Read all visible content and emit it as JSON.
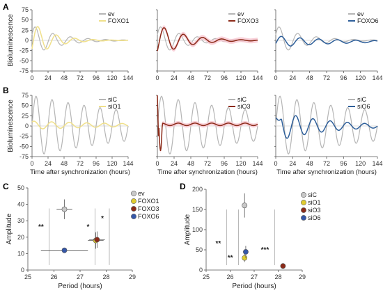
{
  "panel_labels": {
    "A": "A",
    "B": "B",
    "C": "C",
    "D": "D"
  },
  "colors": {
    "control": "#b5b5b5",
    "foxo1": "#f0e08a",
    "foxo3": "#8b2a18",
    "foxo6": "#2e5f9a",
    "error_band": "#f7c6d0",
    "sic_marker": "#c8c8c8",
    "sio1_marker": "#e0cc2e",
    "sio3_marker": "#8b2a18",
    "sio6_marker": "#3557a8"
  },
  "chart_data": [
    {
      "type": "line",
      "id": "A1",
      "ylabel": "Bioluminescence",
      "xlabel": "",
      "xlim": [
        0,
        144
      ],
      "ylim": [
        -75,
        75
      ],
      "xticks": [
        0,
        24,
        48,
        72,
        96,
        120,
        144
      ],
      "yticks": [
        75,
        50,
        25,
        0,
        -25,
        -50,
        -75
      ],
      "legend": "top-right",
      "series": [
        {
          "name": "ev",
          "color": "#b5b5b5",
          "amplitude": 37,
          "period": 26.4,
          "damping": 40,
          "phase": -5,
          "offset": 0
        },
        {
          "name": "FOXO1",
          "color": "#f0e08a",
          "amplitude": 45,
          "period": 27.6,
          "damping": 30,
          "phase": -9,
          "offset": 0
        }
      ]
    },
    {
      "type": "line",
      "id": "A2",
      "ylabel": "",
      "xlabel": "",
      "xlim": [
        0,
        144
      ],
      "ylim": [
        -75,
        75
      ],
      "xticks": [
        0,
        24,
        48,
        72,
        96,
        120,
        144
      ],
      "yticks": [
        75,
        50,
        25,
        0,
        -25,
        -50,
        -75
      ],
      "legend": "top-right",
      "series": [
        {
          "name": "ev",
          "color": "#b5b5b5",
          "amplitude": 37,
          "period": 26.4,
          "damping": 40,
          "phase": -5,
          "offset": 0
        },
        {
          "name": "FOXO3",
          "color": "#8b2a18",
          "amplitude": 40,
          "period": 27.6,
          "damping": 38,
          "phase": -10,
          "offset": 0,
          "band": 6
        }
      ]
    },
    {
      "type": "line",
      "id": "A3",
      "ylabel": "",
      "xlabel": "",
      "xlim": [
        0,
        144
      ],
      "ylim": [
        -75,
        75
      ],
      "xticks": [
        0,
        24,
        48,
        72,
        96,
        120,
        144
      ],
      "yticks": [
        75,
        50,
        25,
        0,
        -25,
        -50,
        -75
      ],
      "legend": "top-right",
      "series": [
        {
          "name": "ev",
          "color": "#b5b5b5",
          "amplitude": 37,
          "period": 26.4,
          "damping": 40,
          "phase": -5,
          "offset": 0
        },
        {
          "name": "FOXO6",
          "color": "#2e5f9a",
          "amplitude": 14,
          "period": 26.4,
          "damping": 80,
          "phase": -8,
          "offset": -3
        }
      ]
    },
    {
      "type": "line",
      "id": "B1",
      "ylabel": "Bioluminescence",
      "xlabel": "Time after synchronization (hours)",
      "xlim": [
        0,
        144
      ],
      "ylim": [
        -75,
        75
      ],
      "xticks": [
        0,
        24,
        48,
        72,
        96,
        120,
        144
      ],
      "yticks": [
        75,
        50,
        25,
        0,
        -25,
        -50,
        -75
      ],
      "legend": "top-right",
      "series": [
        {
          "name": "siC",
          "color": "#b5b5b5",
          "amplitude": 75,
          "period": 24,
          "damping": 200,
          "phase": -6,
          "offset": 0
        },
        {
          "name": "siO1",
          "color": "#f0e08a",
          "amplitude": 10,
          "period": 26.4,
          "damping": 150,
          "phase": -3,
          "offset": 2
        }
      ]
    },
    {
      "type": "line",
      "id": "B2",
      "ylabel": "",
      "xlabel": "Time after synchronization (hours)",
      "xlim": [
        0,
        144
      ],
      "ylim": [
        -75,
        75
      ],
      "xticks": [
        0,
        24,
        48,
        72,
        96,
        120,
        144
      ],
      "yticks": [
        75,
        50,
        25,
        0,
        -25,
        -50,
        -75
      ],
      "legend": "top-right",
      "series": [
        {
          "name": "siC",
          "color": "#b5b5b5",
          "amplitude": 75,
          "period": 24,
          "damping": 200,
          "phase": -6,
          "offset": 0
        },
        {
          "name": "siO3",
          "color": "#8b2a18",
          "amplitude": 3,
          "period": 24,
          "damping": 200,
          "phase": 0,
          "offset": 4,
          "spike": true,
          "band": 5
        }
      ]
    },
    {
      "type": "line",
      "id": "B3",
      "ylabel": "",
      "xlabel": "Time after synchronization (hours)",
      "xlim": [
        0,
        144
      ],
      "ylim": [
        -75,
        75
      ],
      "xticks": [
        0,
        24,
        48,
        72,
        96,
        120,
        144
      ],
      "yticks": [
        75,
        50,
        25,
        0,
        -25,
        -50,
        -75
      ],
      "legend": "top-right",
      "series": [
        {
          "name": "siC",
          "color": "#b5b5b5",
          "amplitude": 75,
          "period": 24,
          "damping": 200,
          "phase": -6,
          "offset": 0
        },
        {
          "name": "siO6",
          "color": "#2e5f9a",
          "amplitude": 38,
          "period": 24.4,
          "damping": 70,
          "phase": -4,
          "offset": 0,
          "dip": true
        }
      ]
    },
    {
      "type": "scatter",
      "id": "C",
      "xlabel": "Period (hours)",
      "ylabel": "Amplitude",
      "xlim": [
        25,
        29
      ],
      "ylim": [
        0,
        50
      ],
      "xticks": [
        25,
        26,
        27,
        28,
        29
      ],
      "yticks": [
        0,
        10,
        20,
        30,
        40,
        50
      ],
      "legend": "top-right",
      "series": [
        {
          "name": "ev",
          "x": 26.4,
          "y": 37,
          "xerr": 0.3,
          "yerr": 6,
          "color": "#c8c8c8"
        },
        {
          "name": "FOXO1",
          "x": 27.6,
          "y": 18,
          "xerr": 0.3,
          "yerr": 5,
          "color": "#e0cc2e"
        },
        {
          "name": "FOXO3",
          "x": 27.65,
          "y": 18.5,
          "xerr": 0.3,
          "yerr": 5,
          "color": "#8b2a18"
        },
        {
          "name": "FOXO6",
          "x": 26.4,
          "y": 12,
          "xerr": 0.9,
          "yerr": 0,
          "color": "#3557a8"
        }
      ],
      "significance": [
        {
          "label": "**",
          "x": 25.5,
          "y": 25
        },
        {
          "label": "*",
          "x": 27.25,
          "y": 25
        },
        {
          "label": "*",
          "x": 27.8,
          "y": 30
        }
      ]
    },
    {
      "type": "scatter",
      "id": "D",
      "xlabel": "Period (hours)",
      "ylabel": "Amplitude",
      "xlim": [
        25,
        29
      ],
      "ylim": [
        0,
        200
      ],
      "xticks": [
        25,
        26,
        27,
        28,
        29
      ],
      "yticks": [
        0,
        50,
        100,
        150,
        200
      ],
      "legend": "top-right",
      "series": [
        {
          "name": "siC",
          "x": 26.6,
          "y": 160,
          "xerr": 0,
          "yerr": 30,
          "color": "#c8c8c8"
        },
        {
          "name": "siO1",
          "x": 26.6,
          "y": 30,
          "xerr": 0,
          "yerr": 10,
          "color": "#e0cc2e"
        },
        {
          "name": "siO3",
          "x": 28.2,
          "y": 10,
          "xerr": 0,
          "yerr": 0,
          "color": "#8b2a18"
        },
        {
          "name": "siO6",
          "x": 26.65,
          "y": 45,
          "xerr": 0,
          "yerr": 15,
          "color": "#3557a8"
        }
      ],
      "significance": [
        {
          "label": "**",
          "x": 25.5,
          "y": 60
        },
        {
          "label": "**",
          "x": 26.0,
          "y": 25
        },
        {
          "label": "***",
          "x": 27.5,
          "y": 45
        }
      ]
    }
  ]
}
